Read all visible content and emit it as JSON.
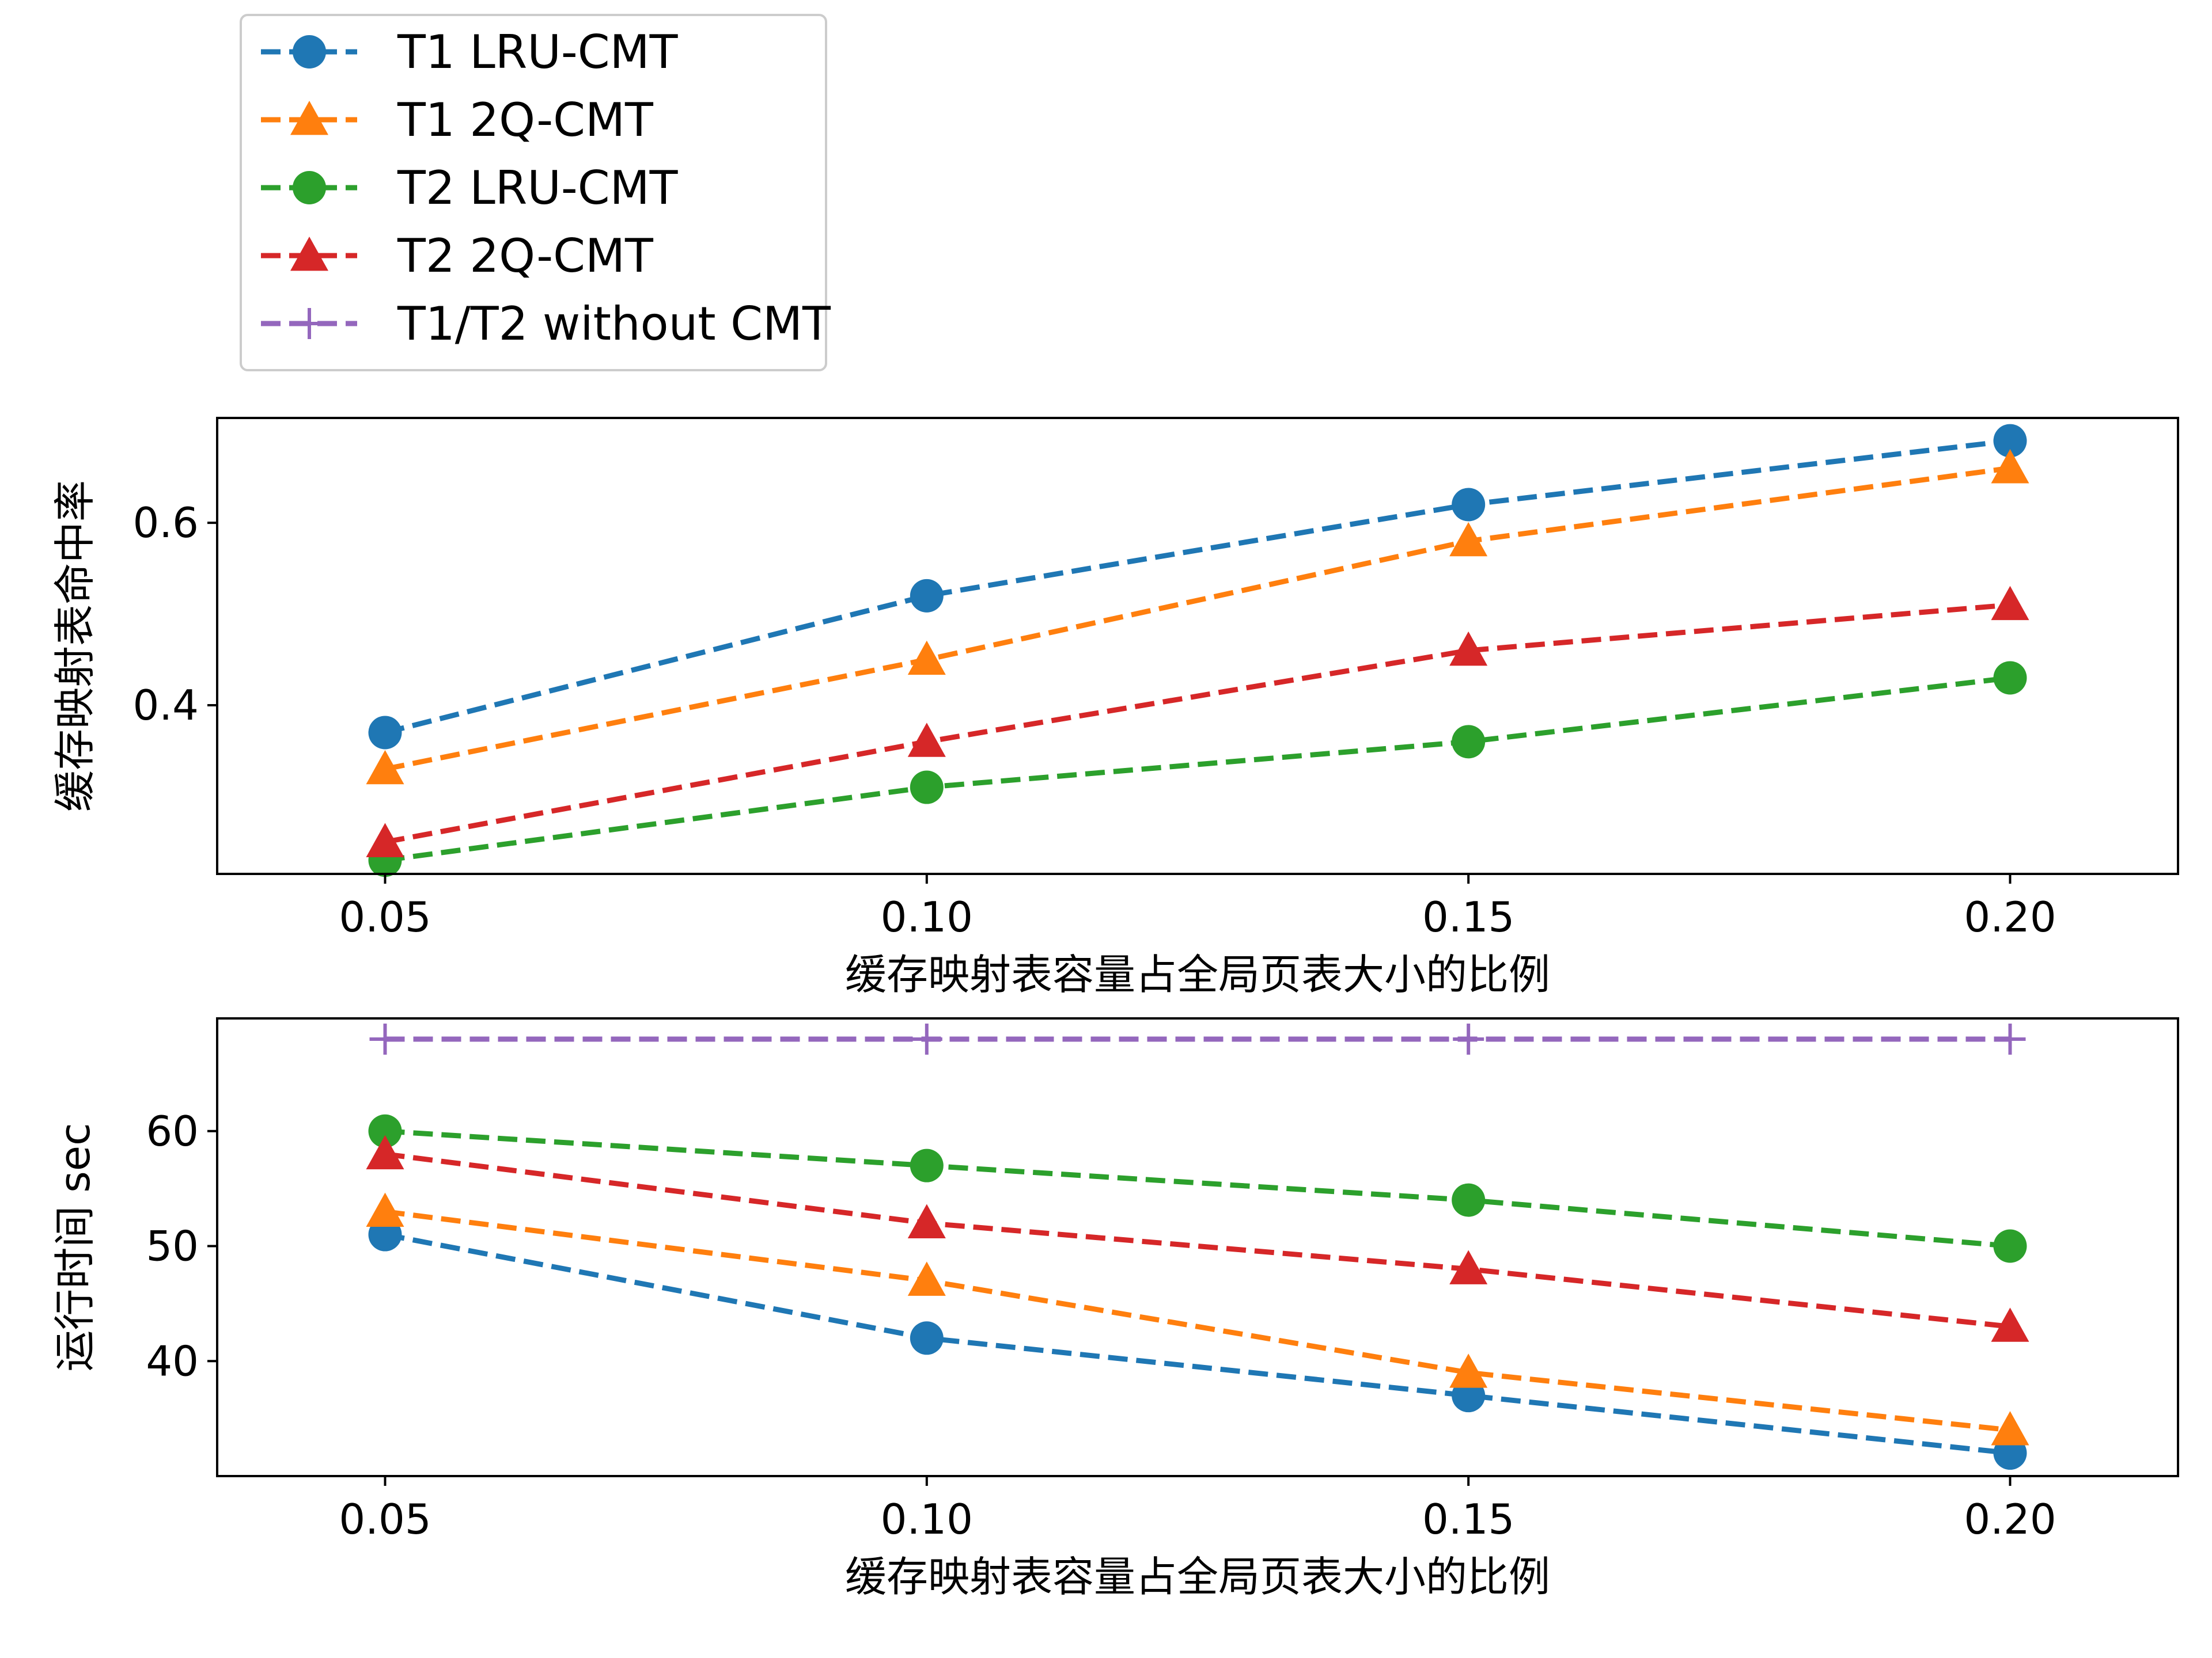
{
  "chart_data": [
    {
      "type": "line",
      "xlabel": "缓存映射表容量占全局页表大小的比例",
      "ylabel": "缓存映射表命中率",
      "x": [
        0.05,
        0.1,
        0.15,
        0.2
      ],
      "x_tick_labels": [
        "0.05",
        "0.10",
        "0.15",
        "0.20"
      ],
      "y_ticks": [
        0.4,
        0.6
      ],
      "y_tick_labels": [
        "0.4",
        "0.6"
      ],
      "xlim": [
        0.0345,
        0.2155
      ],
      "ylim": [
        0.215,
        0.715
      ],
      "series": [
        {
          "name": "T1 LRU-CMT",
          "values": [
            0.37,
            0.52,
            0.62,
            0.69
          ],
          "color": "#1f77b4",
          "marker": "circle"
        },
        {
          "name": "T1 2Q-CMT",
          "values": [
            0.33,
            0.45,
            0.58,
            0.66
          ],
          "color": "#ff7f0e",
          "marker": "triangle"
        },
        {
          "name": "T2 LRU-CMT",
          "values": [
            0.23,
            0.31,
            0.36,
            0.43
          ],
          "color": "#2ca02c",
          "marker": "circle"
        },
        {
          "name": "T2 2Q-CMT",
          "values": [
            0.25,
            0.36,
            0.46,
            0.51
          ],
          "color": "#d62728",
          "marker": "triangle"
        }
      ]
    },
    {
      "type": "line",
      "xlabel": "缓存映射表容量占全局页表大小的比例",
      "ylabel": "运行时间 sec",
      "x": [
        0.05,
        0.1,
        0.15,
        0.2
      ],
      "x_tick_labels": [
        "0.05",
        "0.10",
        "0.15",
        "0.20"
      ],
      "y_ticks": [
        40,
        50,
        60
      ],
      "y_tick_labels": [
        "40",
        "50",
        "60"
      ],
      "xlim": [
        0.0345,
        0.2155
      ],
      "ylim": [
        30,
        69.8
      ],
      "series": [
        {
          "name": "T1 LRU-CMT",
          "values": [
            51,
            42,
            37,
            32
          ],
          "color": "#1f77b4",
          "marker": "circle"
        },
        {
          "name": "T1 2Q-CMT",
          "values": [
            53,
            47,
            39,
            34
          ],
          "color": "#ff7f0e",
          "marker": "triangle"
        },
        {
          "name": "T2 LRU-CMT",
          "values": [
            60,
            57,
            54,
            50
          ],
          "color": "#2ca02c",
          "marker": "circle"
        },
        {
          "name": "T2 2Q-CMT",
          "values": [
            58,
            52,
            48,
            43
          ],
          "color": "#d62728",
          "marker": "triangle"
        },
        {
          "name": "T1/T2 without CMT",
          "values": [
            68,
            68,
            68,
            68
          ],
          "color": "#9467bd",
          "marker": "plus"
        }
      ]
    }
  ],
  "legend": {
    "placement": "top-left, above the charts",
    "entries": [
      {
        "label": "T1 LRU-CMT",
        "color": "#1f77b4",
        "marker": "circle"
      },
      {
        "label": "T1 2Q-CMT",
        "color": "#ff7f0e",
        "marker": "triangle"
      },
      {
        "label": "T2 LRU-CMT",
        "color": "#2ca02c",
        "marker": "circle"
      },
      {
        "label": "T2 2Q-CMT",
        "color": "#d62728",
        "marker": "triangle"
      },
      {
        "label": "T1/T2 without CMT",
        "color": "#9467bd",
        "marker": "plus"
      }
    ]
  }
}
